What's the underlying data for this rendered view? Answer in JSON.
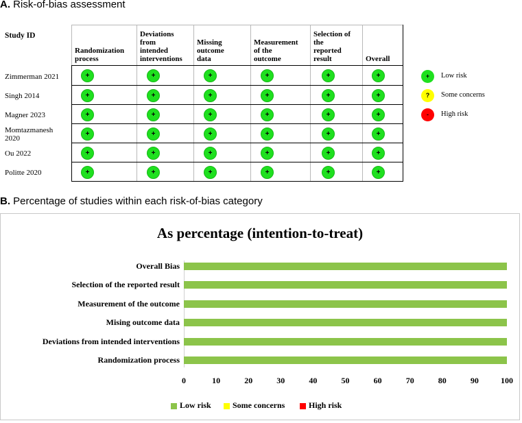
{
  "section_a": {
    "label": "A.",
    "title": "Risk-of-bias assessment"
  },
  "section_b": {
    "label": "B.",
    "title": "Percentage of studies within each risk-of-bias category"
  },
  "table": {
    "study_id_header": "Study ID",
    "columns": [
      [
        "Randomization",
        "process"
      ],
      [
        "Deviations",
        "from",
        "intended",
        "interventions"
      ],
      [
        "Missing",
        "outcome",
        "data"
      ],
      [
        "Measurement",
        "of the",
        "outcome"
      ],
      [
        "Selection of",
        "the",
        "reported",
        "result"
      ],
      [
        "Overall"
      ]
    ],
    "studies": [
      [
        "Zimmerman 2021"
      ],
      [
        "Singh 2014"
      ],
      [
        "Magner 2023"
      ],
      [
        "Momtazmanesh",
        "2020"
      ],
      [
        "Ou 2022"
      ],
      [
        "Politte 2020"
      ]
    ],
    "judgements": [
      [
        "+",
        "+",
        "+",
        "+",
        "+",
        "+"
      ],
      [
        "+",
        "+",
        "+",
        "+",
        "+",
        "+"
      ],
      [
        "+",
        "+",
        "+",
        "+",
        "+",
        "+"
      ],
      [
        "+",
        "+",
        "+",
        "+",
        "+",
        "+"
      ],
      [
        "+",
        "+",
        "+",
        "+",
        "+",
        "+"
      ],
      [
        "+",
        "+",
        "+",
        "+",
        "+",
        "+"
      ]
    ],
    "legend": [
      {
        "symbol": "+",
        "label": "Low risk",
        "color": "#1fe01f"
      },
      {
        "symbol": "?",
        "label": "Some concerns",
        "color": "#ffff00"
      },
      {
        "symbol": "-",
        "label": "High risk",
        "color": "#ff0000"
      }
    ]
  },
  "chart_data": {
    "type": "bar",
    "orientation": "horizontal",
    "stacked": true,
    "title": "As percentage (intention-to-treat)",
    "categories": [
      "Overall Bias",
      "Selection of the reported result",
      "Measurement of the outcome",
      "Mising outcome data",
      "Deviations from intended interventions",
      "Randomization process"
    ],
    "series": [
      {
        "name": "Low risk",
        "color": "#8cc44a",
        "values": [
          100,
          100,
          100,
          100,
          100,
          100
        ]
      },
      {
        "name": "Some concerns",
        "color": "#ffff00",
        "values": [
          0,
          0,
          0,
          0,
          0,
          0
        ]
      },
      {
        "name": "High risk",
        "color": "#ff0000",
        "values": [
          0,
          0,
          0,
          0,
          0,
          0
        ]
      }
    ],
    "xlim": [
      0,
      100
    ],
    "xticks": [
      0,
      10,
      20,
      30,
      40,
      50,
      60,
      70,
      80,
      90,
      100
    ],
    "legend_position": "bottom"
  }
}
